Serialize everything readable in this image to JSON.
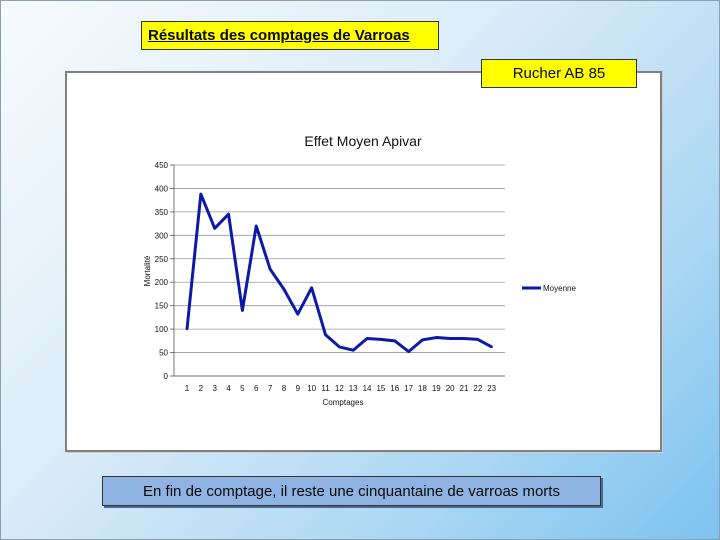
{
  "slide": {
    "title": "Résultats des comptages de Varroas",
    "rucher": "Rucher AB 85",
    "footer": "En fin de comptage, il reste une cinquantaine de varroas morts"
  },
  "colors": {
    "line": "#0d1aa8",
    "highlight": "#ffff00",
    "footer_bg": "#8fb4e3"
  },
  "chart_data": {
    "type": "line",
    "title": "Effet Moyen Apivar",
    "xlabel": "Comptages",
    "ylabel": "Mortalité",
    "categories": [
      "1",
      "2",
      "3",
      "4",
      "5",
      "6",
      "7",
      "8",
      "9",
      "10",
      "11",
      "12",
      "13",
      "14",
      "15",
      "16",
      "17",
      "18",
      "19",
      "20",
      "21",
      "22",
      "23"
    ],
    "series": [
      {
        "name": "Moyenne",
        "values": [
          100,
          388,
          315,
          345,
          140,
          320,
          228,
          185,
          132,
          188,
          88,
          62,
          55,
          80,
          78,
          75,
          52,
          77,
          82,
          80,
          80,
          78,
          62
        ]
      }
    ],
    "ylim": [
      0,
      450
    ],
    "yticks": [
      "0",
      "50",
      "100",
      "150",
      "200",
      "250",
      "300",
      "350",
      "400",
      "450"
    ],
    "grid": true,
    "legend": "right"
  }
}
